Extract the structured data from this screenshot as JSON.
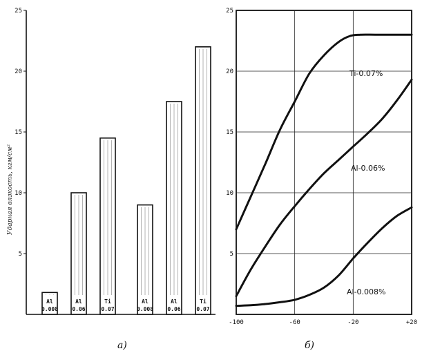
{
  "chart_data": [
    {
      "type": "bar",
      "panel_label": "а)",
      "ylabel": "Ударная вязкость, кгм/см²",
      "ylim": [
        0,
        25
      ],
      "yticks": [
        "5",
        "10",
        "15",
        "20",
        "25"
      ],
      "bars": [
        {
          "label": "Al",
          "sublabel": "0.008",
          "value": 1.8
        },
        {
          "label": "Al",
          "sublabel": "0.06",
          "value": 10.0
        },
        {
          "label": "Ti",
          "sublabel": "0.07",
          "value": 14.5
        },
        {
          "label": "Al",
          "sublabel": "0.008",
          "value": 9.0
        },
        {
          "label": "Al",
          "sublabel": "0.06",
          "value": 17.5
        },
        {
          "label": "Ti",
          "sublabel": "0.07",
          "value": 22.0
        }
      ],
      "colors": {
        "bar_fill": "#ffffff",
        "bar_stroke": "#111111",
        "label_bg": "#111111"
      }
    },
    {
      "type": "line",
      "panel_label": "б)",
      "xlim": [
        -100,
        20
      ],
      "ylim": [
        0,
        25
      ],
      "xticks": [
        {
          "value": -100,
          "label": "-100"
        },
        {
          "value": -60,
          "label": "-60"
        },
        {
          "value": -20,
          "label": "-20"
        },
        {
          "value": 20,
          "label": "+20"
        }
      ],
      "yticks": [
        "5",
        "10",
        "15",
        "20",
        "25"
      ],
      "series": [
        {
          "name": "Ti-0.07%",
          "x": [
            -100,
            -90,
            -80,
            -70,
            -60,
            -50,
            -40,
            -30,
            -22,
            -15,
            -5,
            5,
            20
          ],
          "y": [
            7.0,
            9.7,
            12.4,
            15.2,
            17.5,
            19.8,
            21.3,
            22.4,
            22.9,
            23.0,
            23.0,
            23.0,
            23.0
          ]
        },
        {
          "name": "Al-0.06%",
          "x": [
            -100,
            -90,
            -80,
            -70,
            -60,
            -50,
            -40,
            -30,
            -20,
            -10,
            0,
            10,
            20
          ],
          "y": [
            1.5,
            3.7,
            5.6,
            7.4,
            8.9,
            10.3,
            11.6,
            12.7,
            13.8,
            14.9,
            16.1,
            17.6,
            19.3
          ]
        },
        {
          "name": "Al-0.008%",
          "x": [
            -100,
            -90,
            -80,
            -70,
            -60,
            -50,
            -40,
            -30,
            -20,
            -10,
            0,
            10,
            20
          ],
          "y": [
            0.7,
            0.75,
            0.85,
            1.0,
            1.2,
            1.6,
            2.2,
            3.2,
            4.6,
            5.9,
            7.1,
            8.1,
            8.8
          ]
        }
      ],
      "colors": {
        "line": "#111111",
        "grid": "#222222"
      }
    }
  ]
}
